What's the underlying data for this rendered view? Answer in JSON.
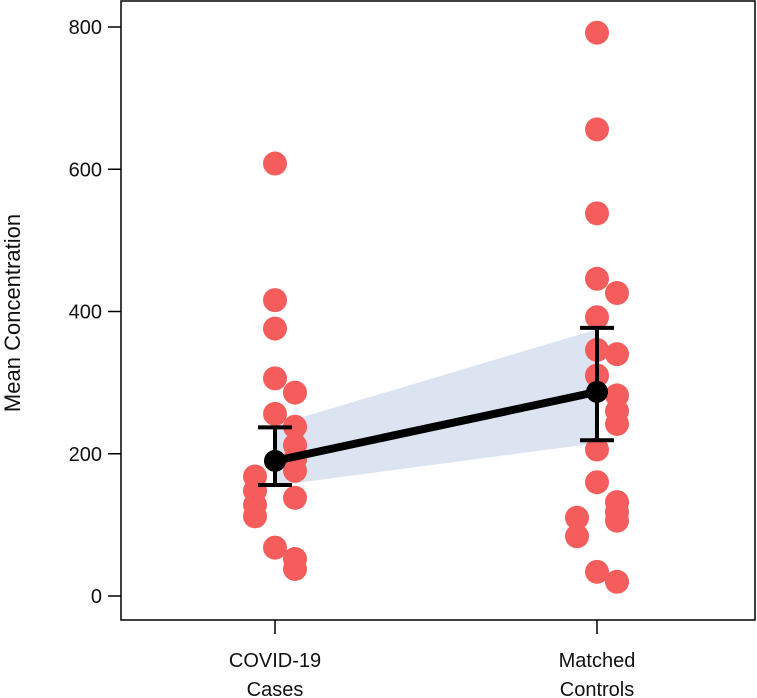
{
  "chart_data": {
    "type": "scatter",
    "title": "",
    "xlabel": "",
    "ylabel": "Mean Concentration",
    "ylim": [
      0,
      800
    ],
    "yticks": [
      0,
      200,
      400,
      600,
      800
    ],
    "categories": [
      {
        "line1": "COVID-19",
        "line2": "Cases"
      },
      {
        "line1": "Matched",
        "line2": "Controls"
      }
    ],
    "points": [
      [
        608,
        416,
        376,
        306,
        286,
        256,
        238,
        212,
        192,
        176,
        168,
        148,
        138,
        128,
        112,
        68,
        52,
        38
      ],
      [
        792,
        656,
        538,
        446,
        426,
        392,
        346,
        340,
        310,
        282,
        260,
        242,
        206,
        160,
        132,
        118,
        110,
        106,
        84,
        34,
        20
      ]
    ],
    "means": [
      190,
      287
    ],
    "error_bars": [
      {
        "low": 156,
        "high": 237
      },
      {
        "low": 219,
        "high": 377
      }
    ],
    "ci_band": [
      {
        "low": 155,
        "high": 240
      },
      {
        "low": 215,
        "high": 375
      }
    ],
    "colors": {
      "points": "#f55c5c",
      "mean_line": "#000000",
      "band": "#dbe3f0",
      "axis": "#000000"
    },
    "grid": false
  }
}
